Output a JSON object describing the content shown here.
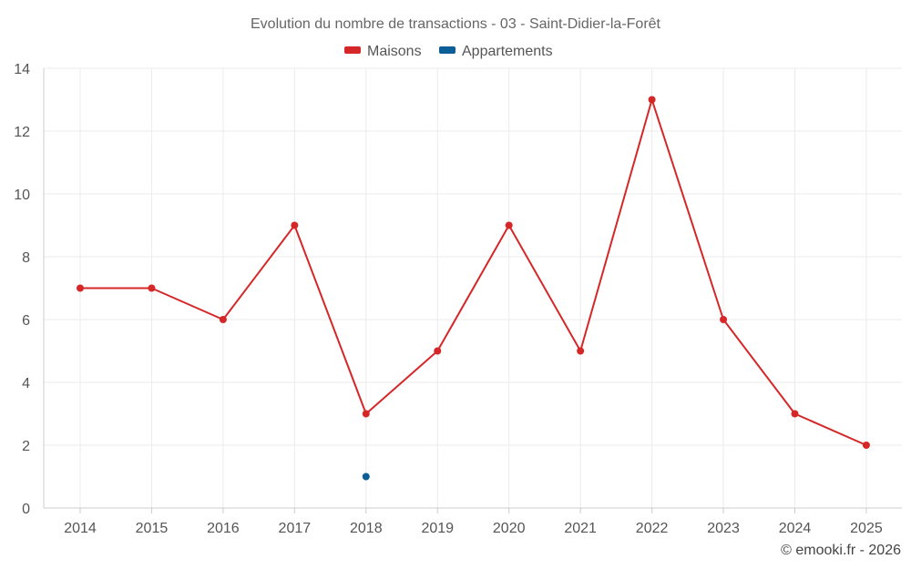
{
  "chart_data": {
    "type": "line",
    "title": "Evolution du nombre de transactions - 03 - Saint-Didier-la-Forêt",
    "categories": [
      "2014",
      "2015",
      "2016",
      "2017",
      "2018",
      "2019",
      "2020",
      "2021",
      "2022",
      "2023",
      "2024",
      "2025"
    ],
    "series": [
      {
        "name": "Maisons",
        "color": "#d62728",
        "values": [
          7,
          7,
          6,
          9,
          3,
          5,
          9,
          5,
          13,
          6,
          3,
          2
        ]
      },
      {
        "name": "Appartements",
        "color": "#0b5e96",
        "values": [
          null,
          null,
          null,
          null,
          1,
          null,
          null,
          null,
          null,
          null,
          null,
          null
        ]
      }
    ],
    "yticks": [
      "0",
      "2",
      "4",
      "6",
      "8",
      "10",
      "12",
      "14"
    ],
    "ylim": [
      0,
      14
    ],
    "grid": true,
    "legend_position": "top-center"
  },
  "credit": "© emooki.fr - 2026"
}
